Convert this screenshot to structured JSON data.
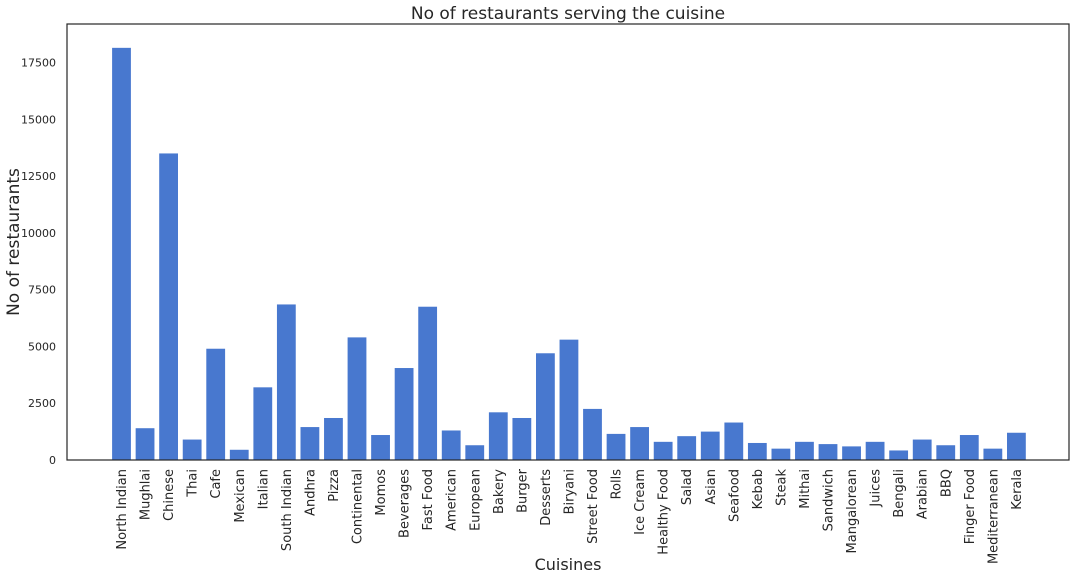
{
  "chart_data": {
    "type": "bar",
    "title": "No of restaurants serving the cuisine",
    "xlabel": "Cuisines",
    "ylabel": "No of restaurants",
    "ylim": [
      0,
      19200
    ],
    "yticks": [
      0,
      2500,
      5000,
      7500,
      10000,
      12500,
      15000,
      17500
    ],
    "grid": false,
    "bar_color": "#4878cf",
    "categories": [
      "North Indian",
      "Mughlai",
      "Chinese",
      "Thai",
      "Cafe",
      "Mexican",
      "Italian",
      "South Indian",
      "Andhra",
      "Pizza",
      "Continental",
      "Momos",
      "Beverages",
      "Fast Food",
      "American",
      "European",
      "Bakery",
      "Burger",
      "Desserts",
      "Biryani",
      "Street Food",
      "Rolls",
      "Ice Cream",
      "Healthy Food",
      "Salad",
      "Asian",
      "Seafood",
      "Kebab",
      "Steak",
      "Mithai",
      "Sandwich",
      "Mangalorean",
      "Juices",
      "Bengali",
      "Arabian",
      "BBQ",
      "Finger Food",
      "Mediterranean",
      "Kerala"
    ],
    "values": [
      18150,
      1400,
      13500,
      900,
      4900,
      450,
      3200,
      6850,
      1450,
      1850,
      5400,
      1100,
      4050,
      6750,
      1300,
      650,
      2100,
      1850,
      4700,
      5300,
      2250,
      1150,
      1450,
      800,
      1050,
      1250,
      1650,
      750,
      500,
      800,
      700,
      600,
      800,
      420,
      900,
      650,
      1100,
      500,
      1200
    ]
  }
}
